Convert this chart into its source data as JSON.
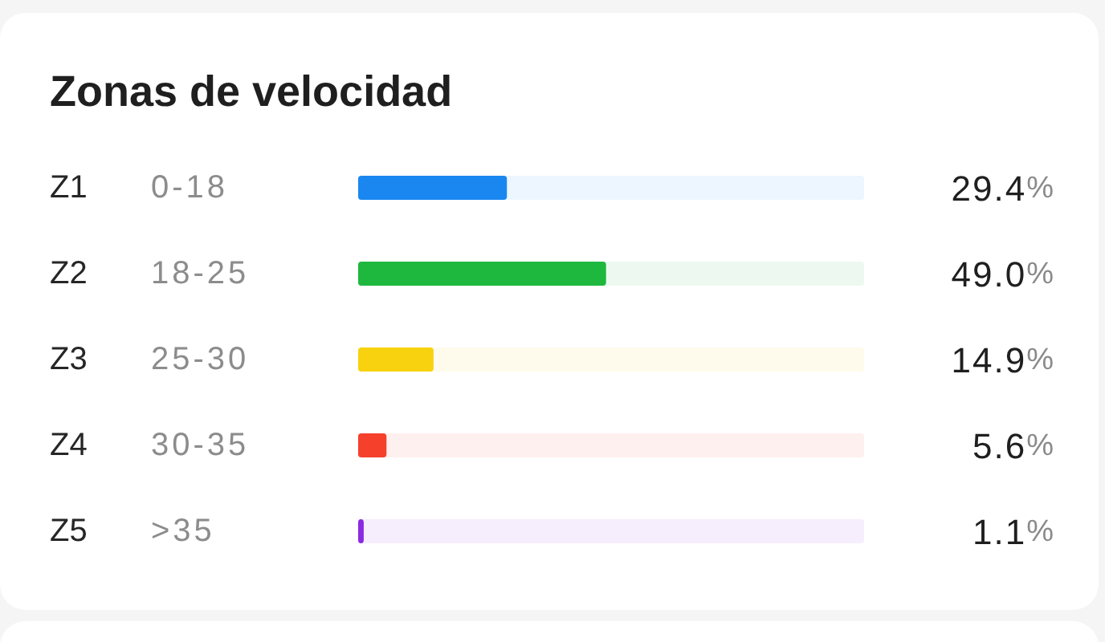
{
  "chart_data": {
    "type": "bar",
    "orientation": "horizontal",
    "title": "Zonas de velocidad",
    "categories": [
      "Z1",
      "Z2",
      "Z3",
      "Z4",
      "Z5"
    ],
    "y2_categories": [
      "0-18",
      "18-25",
      "25-30",
      "30-35",
      ">35"
    ],
    "values": [
      29.4,
      49.0,
      14.9,
      5.6,
      1.1
    ],
    "colors": [
      "#1a87f0",
      "#1fb83f",
      "#f8d20f",
      "#f5402c",
      "#8a2be2"
    ],
    "value_labels": [
      "29.4%",
      "49.0%",
      "14.9%",
      "5.6%",
      "1.1%"
    ],
    "xlim": [
      0,
      100
    ],
    "tick_labels": "y"
  }
}
